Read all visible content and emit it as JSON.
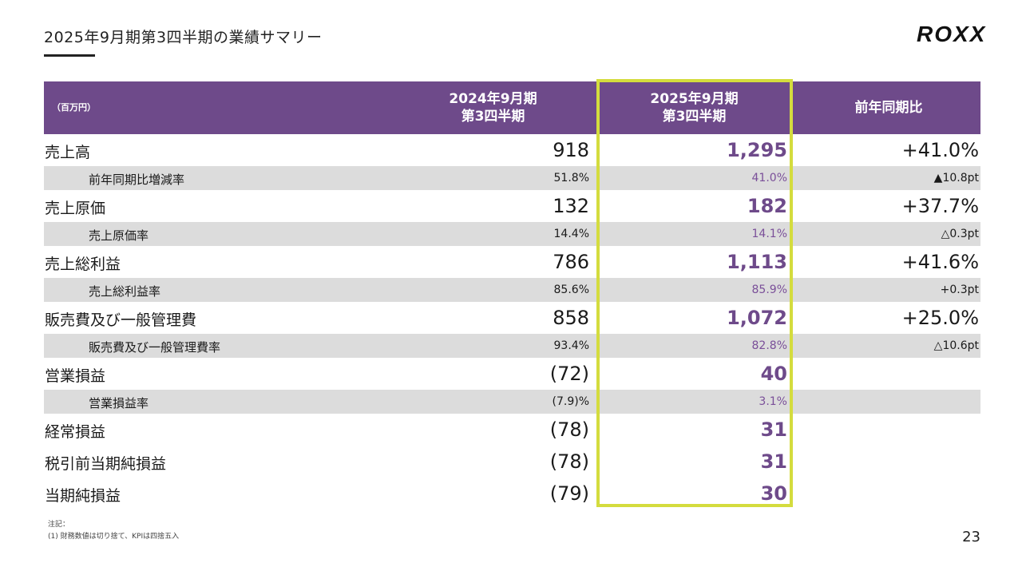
{
  "title": "2025年9月期第3四半期の業績サマリー",
  "logo": "ROXX",
  "header": {
    "unit": "（百万円）",
    "col1_line1": "2024年9月期",
    "col1_line2": "第3四半期",
    "col2_line1": "2025年9月期",
    "col2_line2": "第3四半期",
    "col3": "前年同期比"
  },
  "rows": [
    {
      "type": "main",
      "label": "売上高",
      "prev": "918",
      "curr": "1,295",
      "yoy": "+41.0%"
    },
    {
      "type": "sub",
      "label": "前年同期比増減率",
      "prev": "51.8%",
      "curr": "41.0%",
      "yoy": "▲10.8pt"
    },
    {
      "type": "main",
      "label": "売上原価",
      "prev": "132",
      "curr": "182",
      "yoy": "+37.7%"
    },
    {
      "type": "sub",
      "label": "売上原価率",
      "prev": "14.4%",
      "curr": "14.1%",
      "yoy": "△0.3pt"
    },
    {
      "type": "main",
      "label": "売上総利益",
      "prev": "786",
      "curr": "1,113",
      "yoy": "+41.6%"
    },
    {
      "type": "sub",
      "label": "売上総利益率",
      "prev": "85.6%",
      "curr": "85.9%",
      "yoy": "+0.3pt"
    },
    {
      "type": "main",
      "label": "販売費及び一般管理費",
      "prev": "858",
      "curr": "1,072",
      "yoy": "+25.0%"
    },
    {
      "type": "sub",
      "label": "販売費及び一般管理費率",
      "prev": "93.4%",
      "curr": "82.8%",
      "yoy": "△10.6pt"
    },
    {
      "type": "main",
      "label": "営業損益",
      "prev": "(72)",
      "curr": "40",
      "yoy": ""
    },
    {
      "type": "sub",
      "label": "営業損益率",
      "prev": "(7.9)%",
      "curr": "3.1%",
      "yoy": ""
    },
    {
      "type": "main",
      "label": "経常損益",
      "prev": "(78)",
      "curr": "31",
      "yoy": ""
    },
    {
      "type": "main",
      "label": "税引前当期純損益",
      "prev": "(78)",
      "curr": "31",
      "yoy": ""
    },
    {
      "type": "main",
      "label": "当期純損益",
      "prev": "(79)",
      "curr": "30",
      "yoy": ""
    }
  ],
  "notes": {
    "line1": "注記：",
    "line2": "(1) 財務数値は切り捨て、KPIは四捨五入"
  },
  "page_number": "23",
  "colors": {
    "header_bg": "#6e4a8a",
    "highlight_border": "#d4dc3e",
    "sub_row_bg": "#dcdcdc"
  }
}
